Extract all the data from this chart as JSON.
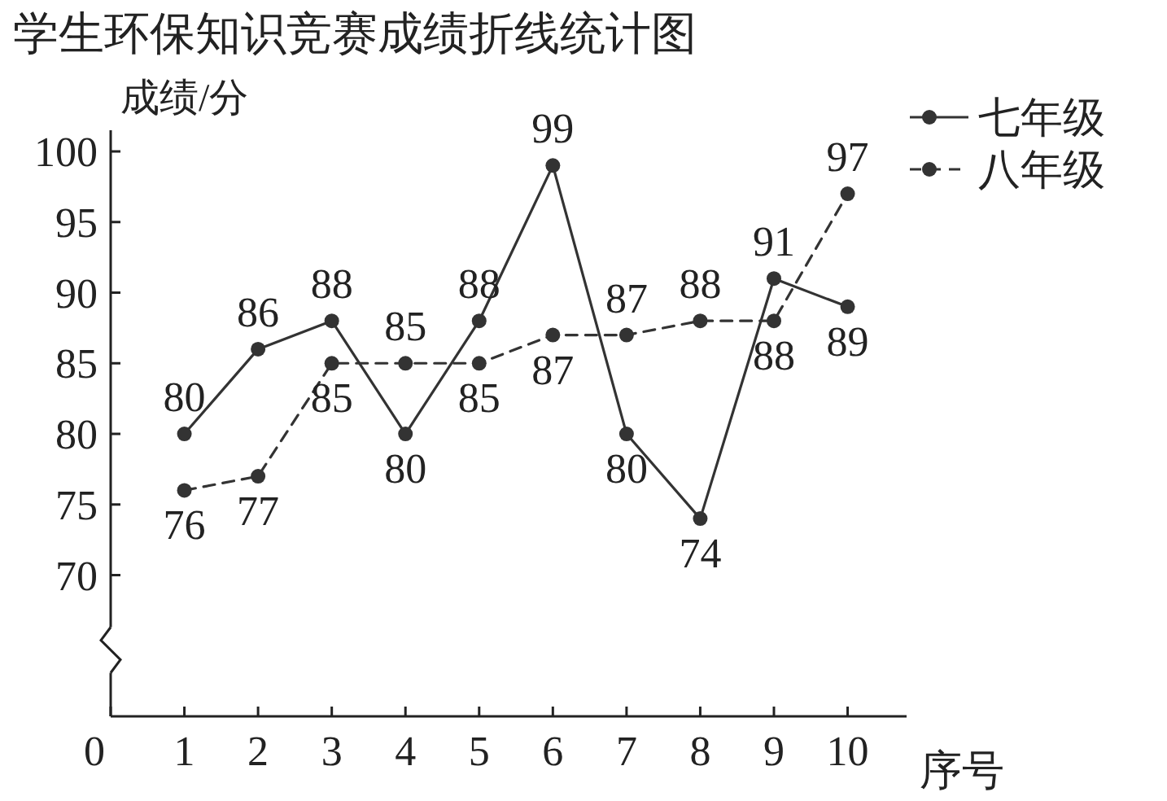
{
  "chart_data": {
    "type": "line",
    "title": "学生环保知识竞赛成绩折线统计图",
    "xlabel": "序号",
    "ylabel": "成绩/分",
    "x": [
      1,
      2,
      3,
      4,
      5,
      6,
      7,
      8,
      9,
      10
    ],
    "series": [
      {
        "name": "七年级",
        "color": "#333333",
        "line_style": "solid",
        "values": [
          80,
          86,
          88,
          80,
          88,
          99,
          80,
          74,
          91,
          89
        ]
      },
      {
        "name": "八年级",
        "color": "#333333",
        "line_style": "dashed",
        "values": [
          76,
          77,
          85,
          85,
          85,
          87,
          87,
          88,
          88,
          97
        ]
      }
    ],
    "xlim": [
      0,
      10.8
    ],
    "xticks": [
      0,
      1,
      2,
      3,
      4,
      5,
      6,
      7,
      8,
      9,
      10
    ],
    "ylim": [
      60,
      101.5
    ],
    "yticks": [
      70,
      75,
      80,
      85,
      90,
      95,
      100
    ],
    "marker": "circle",
    "data_labels": true,
    "legend": "top right",
    "grid": false
  }
}
